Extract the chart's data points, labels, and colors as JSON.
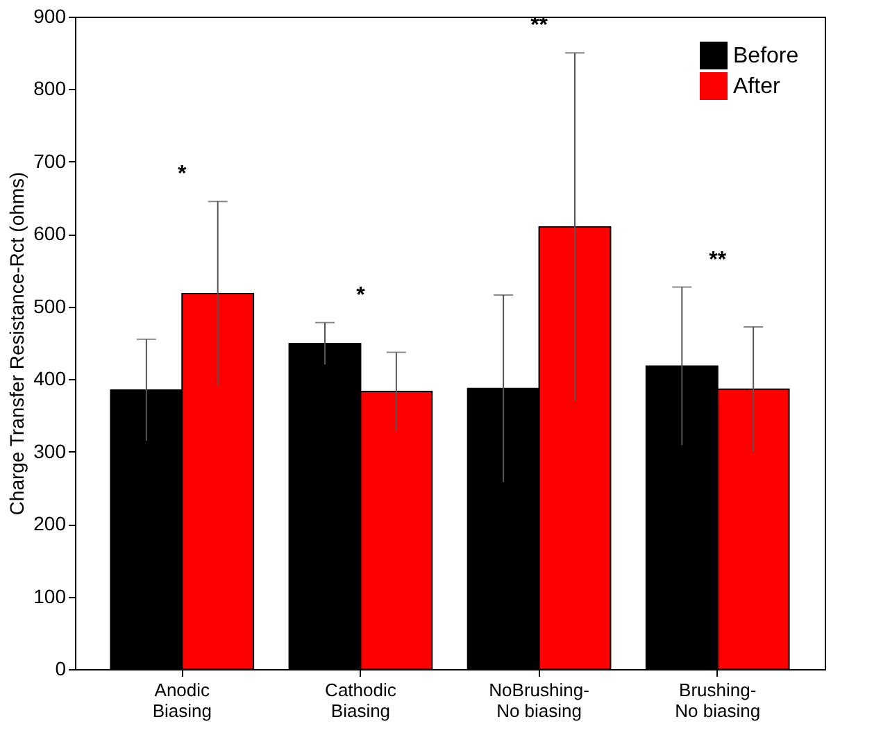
{
  "chart_data": {
    "type": "bar",
    "ylabel": "Charge Transfer Resistance-Rct (ohms)",
    "categories": [
      "Anodic\nBiasing",
      "Cathodic\nBiasing",
      "NoBrushing-\nNo biasing",
      "Brushing-\nNo biasing"
    ],
    "series": [
      {
        "name": "Before",
        "color": "#000000",
        "values": [
          385,
          449,
          387,
          418
        ],
        "errors": [
          70,
          29,
          129,
          109
        ]
      },
      {
        "name": "After",
        "color": "#ff0000",
        "values": [
          518,
          383,
          610,
          386
        ],
        "errors": [
          127,
          54,
          240,
          86
        ]
      }
    ],
    "ylim": [
      0,
      900
    ],
    "yticks": [
      0,
      100,
      200,
      300,
      400,
      500,
      600,
      700,
      800,
      900
    ],
    "grid": false,
    "legend": "top right",
    "annotations": [
      "*",
      "*",
      "**",
      "**"
    ]
  }
}
